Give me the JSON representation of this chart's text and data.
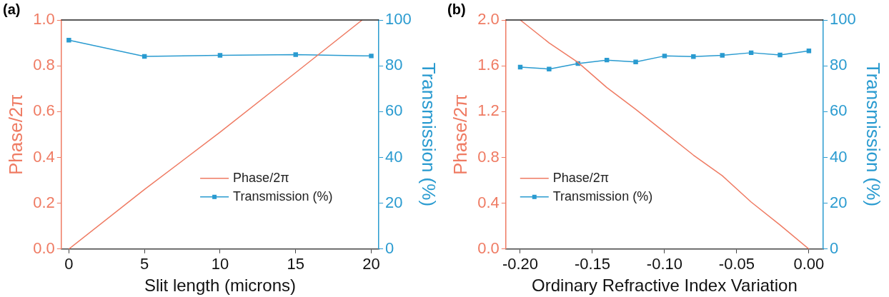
{
  "chart_data": [
    {
      "type": "line",
      "title": "(a)",
      "xlabel": "Slit length (microns)",
      "ylabel": "Phase/2π",
      "y2label": "Transmission (%)",
      "xlim": [
        -0.5,
        20.5
      ],
      "xticks": [
        0,
        5,
        10,
        15,
        20
      ],
      "ylim": [
        0,
        1.0
      ],
      "yticks": [
        {
          "value": 0,
          "label": "0.0"
        },
        {
          "value": 0.2,
          "label": "0.2"
        },
        {
          "value": 0.4,
          "label": "0.4"
        },
        {
          "value": 0.6,
          "label": "0.6"
        },
        {
          "value": 0.8,
          "label": "0.8"
        },
        {
          "value": 1.0,
          "label": "1.0"
        }
      ],
      "y2lim": [
        0,
        100
      ],
      "y2ticks": [
        0,
        20,
        40,
        60,
        80,
        100
      ],
      "legend": "bottom right",
      "grid": false,
      "line_style": "solid",
      "series": [
        {
          "name": "Phase/2π",
          "color": "#ef7b63",
          "marker": "none",
          "x": [
            0,
            5,
            10,
            15,
            19.4
          ],
          "values": [
            0,
            0.26,
            0.51,
            0.77,
            1.0
          ]
        },
        {
          "name": "Transmission (%)",
          "color": "#2a9bd0",
          "marker": "square",
          "axis": "y2",
          "x": [
            0,
            5,
            10,
            15,
            20
          ],
          "values": [
            91.2,
            84.1,
            84.6,
            84.9,
            84.3
          ]
        }
      ]
    },
    {
      "type": "line",
      "title": "(b)",
      "xlabel": "Ordinary Refractive Index Variation",
      "ylabel": "Phase/2π",
      "y2label": "Transmission (%)",
      "xlim": [
        -0.21,
        0.01
      ],
      "xticks": [
        {
          "value": -0.2,
          "label": "-0.20"
        },
        {
          "value": -0.15,
          "label": "-0.15"
        },
        {
          "value": -0.1,
          "label": "-0.10"
        },
        {
          "value": -0.05,
          "label": "-0.05"
        },
        {
          "value": 0,
          "label": "0.00"
        }
      ],
      "ylim": [
        0,
        2.0
      ],
      "yticks": [
        {
          "value": 0,
          "label": "0.0"
        },
        {
          "value": 0.4,
          "label": "0.4"
        },
        {
          "value": 0.8,
          "label": "0.8"
        },
        {
          "value": 1.2,
          "label": "1.2"
        },
        {
          "value": 1.6,
          "label": "1.6"
        },
        {
          "value": 2.0,
          "label": "2.0"
        }
      ],
      "y2lim": [
        0,
        100
      ],
      "y2ticks": [
        0,
        20,
        40,
        60,
        80,
        100
      ],
      "legend": "bottom left",
      "grid": false,
      "line_style": "solid",
      "series": [
        {
          "name": "Phase/2π",
          "color": "#ef7b63",
          "marker": "none",
          "x": [
            -0.2,
            -0.18,
            -0.16,
            -0.14,
            -0.12,
            -0.1,
            -0.08,
            -0.06,
            -0.04,
            -0.02,
            0
          ],
          "values": [
            2.0,
            1.8,
            1.63,
            1.41,
            1.22,
            1.02,
            0.82,
            0.64,
            0.41,
            0.21,
            0
          ]
        },
        {
          "name": "Transmission (%)",
          "color": "#2a9bd0",
          "marker": "square",
          "axis": "y2",
          "x": [
            -0.2,
            -0.18,
            -0.16,
            -0.14,
            -0.12,
            -0.1,
            -0.08,
            -0.06,
            -0.04,
            -0.02,
            0
          ],
          "values": [
            79.4,
            78.6,
            81.0,
            82.5,
            81.7,
            84.3,
            84.0,
            84.6,
            85.7,
            84.7,
            86.5
          ]
        }
      ]
    }
  ]
}
